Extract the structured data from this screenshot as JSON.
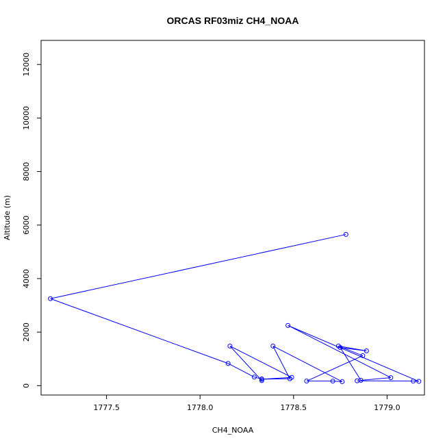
{
  "chart_data": {
    "type": "line",
    "title": "ORCAS RF03miz CH4_NOAA",
    "xlabel": "CH4_NOAA",
    "ylabel": "Altitude (m)",
    "xlim": [
      1777.15,
      1779.2
    ],
    "ylim": [
      -350,
      12900
    ],
    "x_ticks": [
      {
        "value": 1777.5,
        "label": "1777.5"
      },
      {
        "value": 1778.0,
        "label": "1778.0"
      },
      {
        "value": 1778.5,
        "label": "1778.5"
      },
      {
        "value": 1779.0,
        "label": "1779.0"
      }
    ],
    "y_ticks": [
      {
        "value": 0,
        "label": "0"
      },
      {
        "value": 2000,
        "label": "2000"
      },
      {
        "value": 4000,
        "label": "4000"
      },
      {
        "value": 6000,
        "label": "6000"
      },
      {
        "value": 8000,
        "label": "8000"
      },
      {
        "value": 10000,
        "label": "10000"
      },
      {
        "value": 12000,
        "label": "12000"
      }
    ],
    "grid": false,
    "series": [
      {
        "color": "#0000ff",
        "marker": "open-circle",
        "points": [
          {
            "x": 1778.78,
            "y": 5650
          },
          {
            "x": 1777.2,
            "y": 3250
          },
          {
            "x": 1778.15,
            "y": 830
          },
          {
            "x": 1778.29,
            "y": 320
          },
          {
            "x": 1778.33,
            "y": 250
          },
          {
            "x": 1778.33,
            "y": 190
          },
          {
            "x": 1778.16,
            "y": 1480
          },
          {
            "x": 1778.49,
            "y": 310
          },
          {
            "x": 1778.33,
            "y": 240
          },
          {
            "x": 1778.48,
            "y": 260
          },
          {
            "x": 1778.39,
            "y": 1480
          },
          {
            "x": 1778.76,
            "y": 150
          },
          {
            "x": 1778.71,
            "y": 170
          },
          {
            "x": 1778.57,
            "y": 170
          },
          {
            "x": 1778.87,
            "y": 1120
          },
          {
            "x": 1778.74,
            "y": 1480
          },
          {
            "x": 1778.89,
            "y": 1300
          },
          {
            "x": 1778.75,
            "y": 1420
          },
          {
            "x": 1778.86,
            "y": 200
          },
          {
            "x": 1779.02,
            "y": 300
          },
          {
            "x": 1778.47,
            "y": 2250
          },
          {
            "x": 1779.17,
            "y": 160
          },
          {
            "x": 1779.14,
            "y": 170
          },
          {
            "x": 1778.84,
            "y": 180
          }
        ]
      }
    ]
  }
}
